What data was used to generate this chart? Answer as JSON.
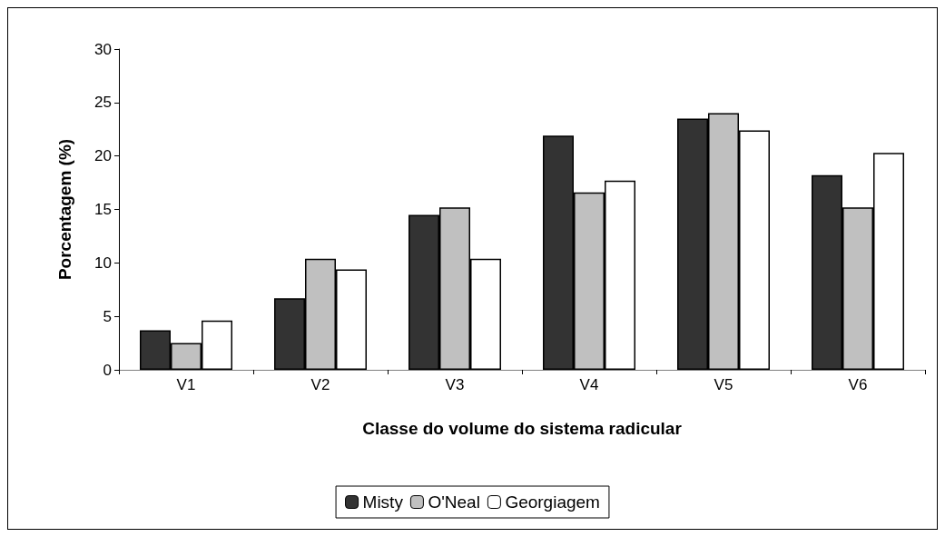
{
  "chart_data": {
    "type": "bar",
    "xlabel": "Classe do volume do sistema radicular",
    "ylabel": "Porcentagem (%)",
    "categories": [
      "V1",
      "V2",
      "V3",
      "V4",
      "V5",
      "V6"
    ],
    "series": [
      {
        "name": "Misty",
        "color": "#333333",
        "values": [
          3.7,
          6.7,
          14.5,
          21.9,
          23.5,
          18.2
        ]
      },
      {
        "name": "O'Neal",
        "color": "#c0c0c0",
        "values": [
          2.5,
          10.4,
          15.2,
          16.6,
          24.0,
          15.2
        ]
      },
      {
        "name": "Georgiagem",
        "color": "#ffffff",
        "values": [
          4.6,
          9.4,
          10.4,
          17.7,
          22.4,
          20.3
        ]
      }
    ],
    "ylim": [
      0,
      30
    ],
    "yticks": [
      0,
      5,
      10,
      15,
      20,
      25,
      30
    ],
    "grid": false,
    "legend": "bottom"
  }
}
